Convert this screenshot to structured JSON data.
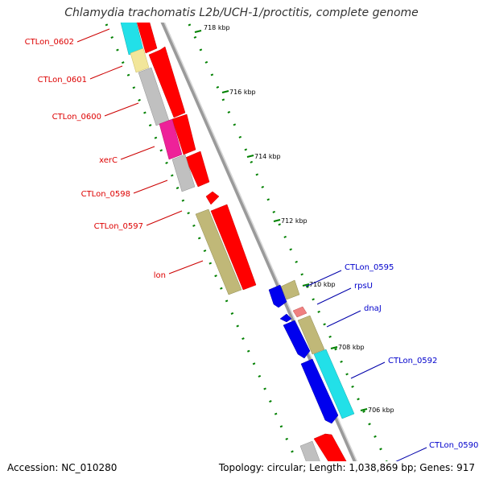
{
  "title": "Chlamydia trachomatis L2b/UCH-1/proctitis, complete genome",
  "footer": {
    "accession": "Accession: NC_010280",
    "summary": "Topology: circular; Length: 1,038,869 bp; Genes: 917"
  },
  "colors": {
    "forward_strand_gene": "#ff0000",
    "reverse_strand_label": "#0000cc",
    "forward_strand_label": "#dd0000",
    "backbone": "#888888",
    "ruler": "#008000"
  },
  "ruler_ticks": [
    {
      "label": "718 kbp"
    },
    {
      "label": "716 kbp"
    },
    {
      "label": "714 kbp"
    },
    {
      "label": "712 kbp"
    },
    {
      "label": "710 kbp"
    },
    {
      "label": "708 kbp"
    },
    {
      "label": "706 kbp"
    }
  ],
  "left_labels": [
    {
      "text": "CTLon_0602"
    },
    {
      "text": "CTLon_0601"
    },
    {
      "text": "CTLon_0600"
    },
    {
      "text": "xerC"
    },
    {
      "text": "CTLon_0598"
    },
    {
      "text": "CTLon_0597"
    },
    {
      "text": "lon"
    }
  ],
  "right_labels": [
    {
      "text": "CTLon_0595"
    },
    {
      "text": "rpsU"
    },
    {
      "text": "dnaJ"
    },
    {
      "text": "CTLon_0592"
    },
    {
      "text": "CTLon_0590"
    }
  ]
}
